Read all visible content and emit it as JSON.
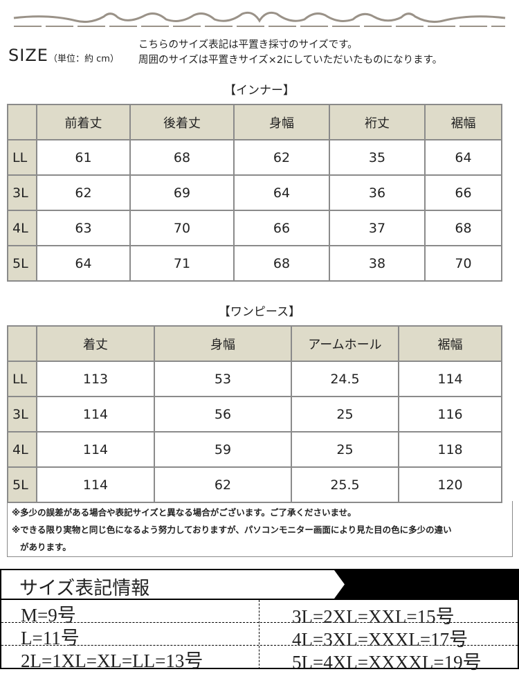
{
  "header": {
    "size_label": "SIZE",
    "unit": "（単位：約 cm）",
    "desc": [
      "こちらのサイズ表記は平置き採寸のサイズです。",
      "周囲のサイズは平置きサイズ×2にしていただいたものになります。"
    ]
  },
  "inner": {
    "title": "【インナー】",
    "columns": [
      "前着丈",
      "後着丈",
      "身幅",
      "裄丈",
      "裾幅"
    ],
    "rows": [
      {
        "size": "LL",
        "values": [
          "61",
          "68",
          "62",
          "35",
          "64"
        ]
      },
      {
        "size": "3L",
        "values": [
          "62",
          "69",
          "64",
          "36",
          "66"
        ]
      },
      {
        "size": "4L",
        "values": [
          "63",
          "70",
          "66",
          "37",
          "68"
        ]
      },
      {
        "size": "5L",
        "values": [
          "64",
          "71",
          "68",
          "38",
          "70"
        ]
      }
    ]
  },
  "onepiece": {
    "title": "【ワンピース】",
    "columns": [
      "着丈",
      "身幅",
      "アームホール",
      "裾幅"
    ],
    "rows": [
      {
        "size": "LL",
        "values": [
          "113",
          "53",
          "24.5",
          "114"
        ]
      },
      {
        "size": "3L",
        "values": [
          "114",
          "56",
          "25",
          "116"
        ]
      },
      {
        "size": "4L",
        "values": [
          "114",
          "59",
          "25",
          "118"
        ]
      },
      {
        "size": "5L",
        "values": [
          "114",
          "62",
          "25.5",
          "120"
        ]
      }
    ]
  },
  "notes": [
    "※多少の誤差がある場合や表記サイズと異なる場合がございます。ご了承くださいませ。",
    "※できる限り実物と同じ色になるよう努力しておりますが、パソコンモニター画面により見た目の色に多少の違い",
    "があります。"
  ],
  "size_info": {
    "title": "サイズ表記情報",
    "left": [
      "M=9号",
      "L=11号",
      "2L=1XL=XL=LL=13号"
    ],
    "right": [
      "3L=2XL=XXL=15号",
      "4L=3XL=XXXL=17号",
      "5L=4XL=XXXXL=19号"
    ]
  },
  "colors": {
    "header_bg": "#dedbc9",
    "border": "#8a8a8a",
    "ornament": "#9a9288"
  }
}
